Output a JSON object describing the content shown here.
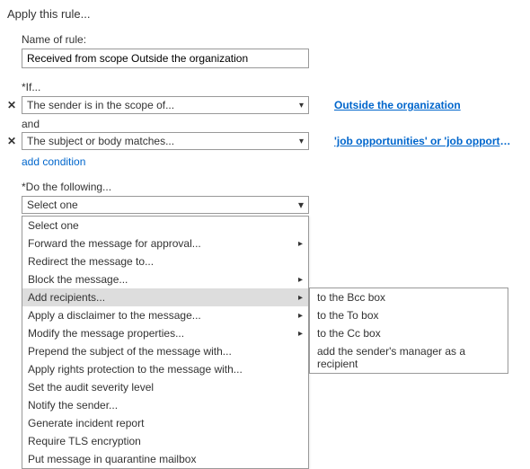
{
  "page": {
    "title": "Apply this rule..."
  },
  "name_field": {
    "label": "Name of rule:",
    "value": "Received from scope Outside the organization"
  },
  "if_section": {
    "label": "*If..."
  },
  "conditions": [
    {
      "remove": "✕",
      "text": "The sender is in the scope of...",
      "link": "Outside the organization"
    },
    {
      "remove": "✕",
      "text": "The subject or body matches...",
      "link": "'job opportunities' or 'job opportunity'"
    }
  ],
  "and_label": "and",
  "add_condition": "add condition",
  "do_section": {
    "label": "*Do the following...",
    "selected": "Select one"
  },
  "actions": [
    {
      "label": "Select one",
      "hasSub": false
    },
    {
      "label": "Forward the message for approval...",
      "hasSub": true
    },
    {
      "label": "Redirect the message to...",
      "hasSub": false
    },
    {
      "label": "Block the message...",
      "hasSub": true
    },
    {
      "label": "Add recipients...",
      "hasSub": true,
      "highlight": true
    },
    {
      "label": "Apply a disclaimer to the message...",
      "hasSub": true
    },
    {
      "label": "Modify the message properties...",
      "hasSub": true
    },
    {
      "label": "Prepend the subject of the message with...",
      "hasSub": false
    },
    {
      "label": "Apply rights protection to the message with...",
      "hasSub": false
    },
    {
      "label": "Set the audit severity level",
      "hasSub": false
    },
    {
      "label": "Notify the sender...",
      "hasSub": false
    },
    {
      "label": "Generate incident report",
      "hasSub": false
    },
    {
      "label": "Require TLS encryption",
      "hasSub": false
    },
    {
      "label": "Put message in quarantine mailbox",
      "hasSub": false
    }
  ],
  "submenu_top_index": 4,
  "submenu_items": [
    "to the Bcc box",
    "to the To box",
    "to the Cc box",
    "add the sender's manager as a recipient"
  ],
  "chevron": "▾",
  "right_arrow": "▸"
}
